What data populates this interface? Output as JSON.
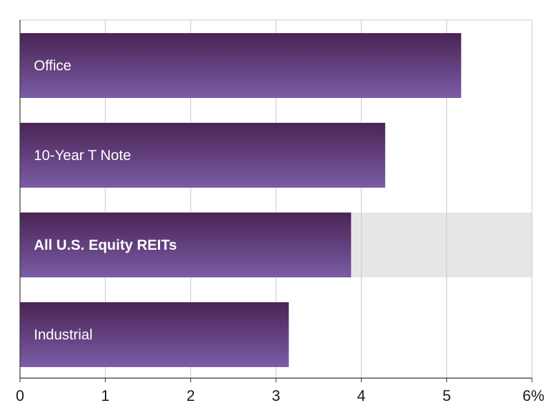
{
  "chart_data": {
    "type": "bar",
    "orientation": "horizontal",
    "categories": [
      "Office",
      "10-Year T Note",
      "All U.S. Equity REITs",
      "Industrial"
    ],
    "values": [
      5.17,
      4.28,
      3.88,
      3.15
    ],
    "highlighted_category": "All U.S. Equity REITs",
    "xlim": [
      0,
      6
    ],
    "x_ticks": [
      "0",
      "1",
      "2",
      "3",
      "4",
      "5",
      "6%"
    ],
    "grid": true,
    "title": "",
    "xlabel": "",
    "ylabel": "",
    "colors": {
      "bar_top": "#4a2455",
      "bar_bottom": "#7b5ca6",
      "highlight_band": "#e6e6e8",
      "grid": "#c8c8c8",
      "axis": "#333333"
    }
  }
}
